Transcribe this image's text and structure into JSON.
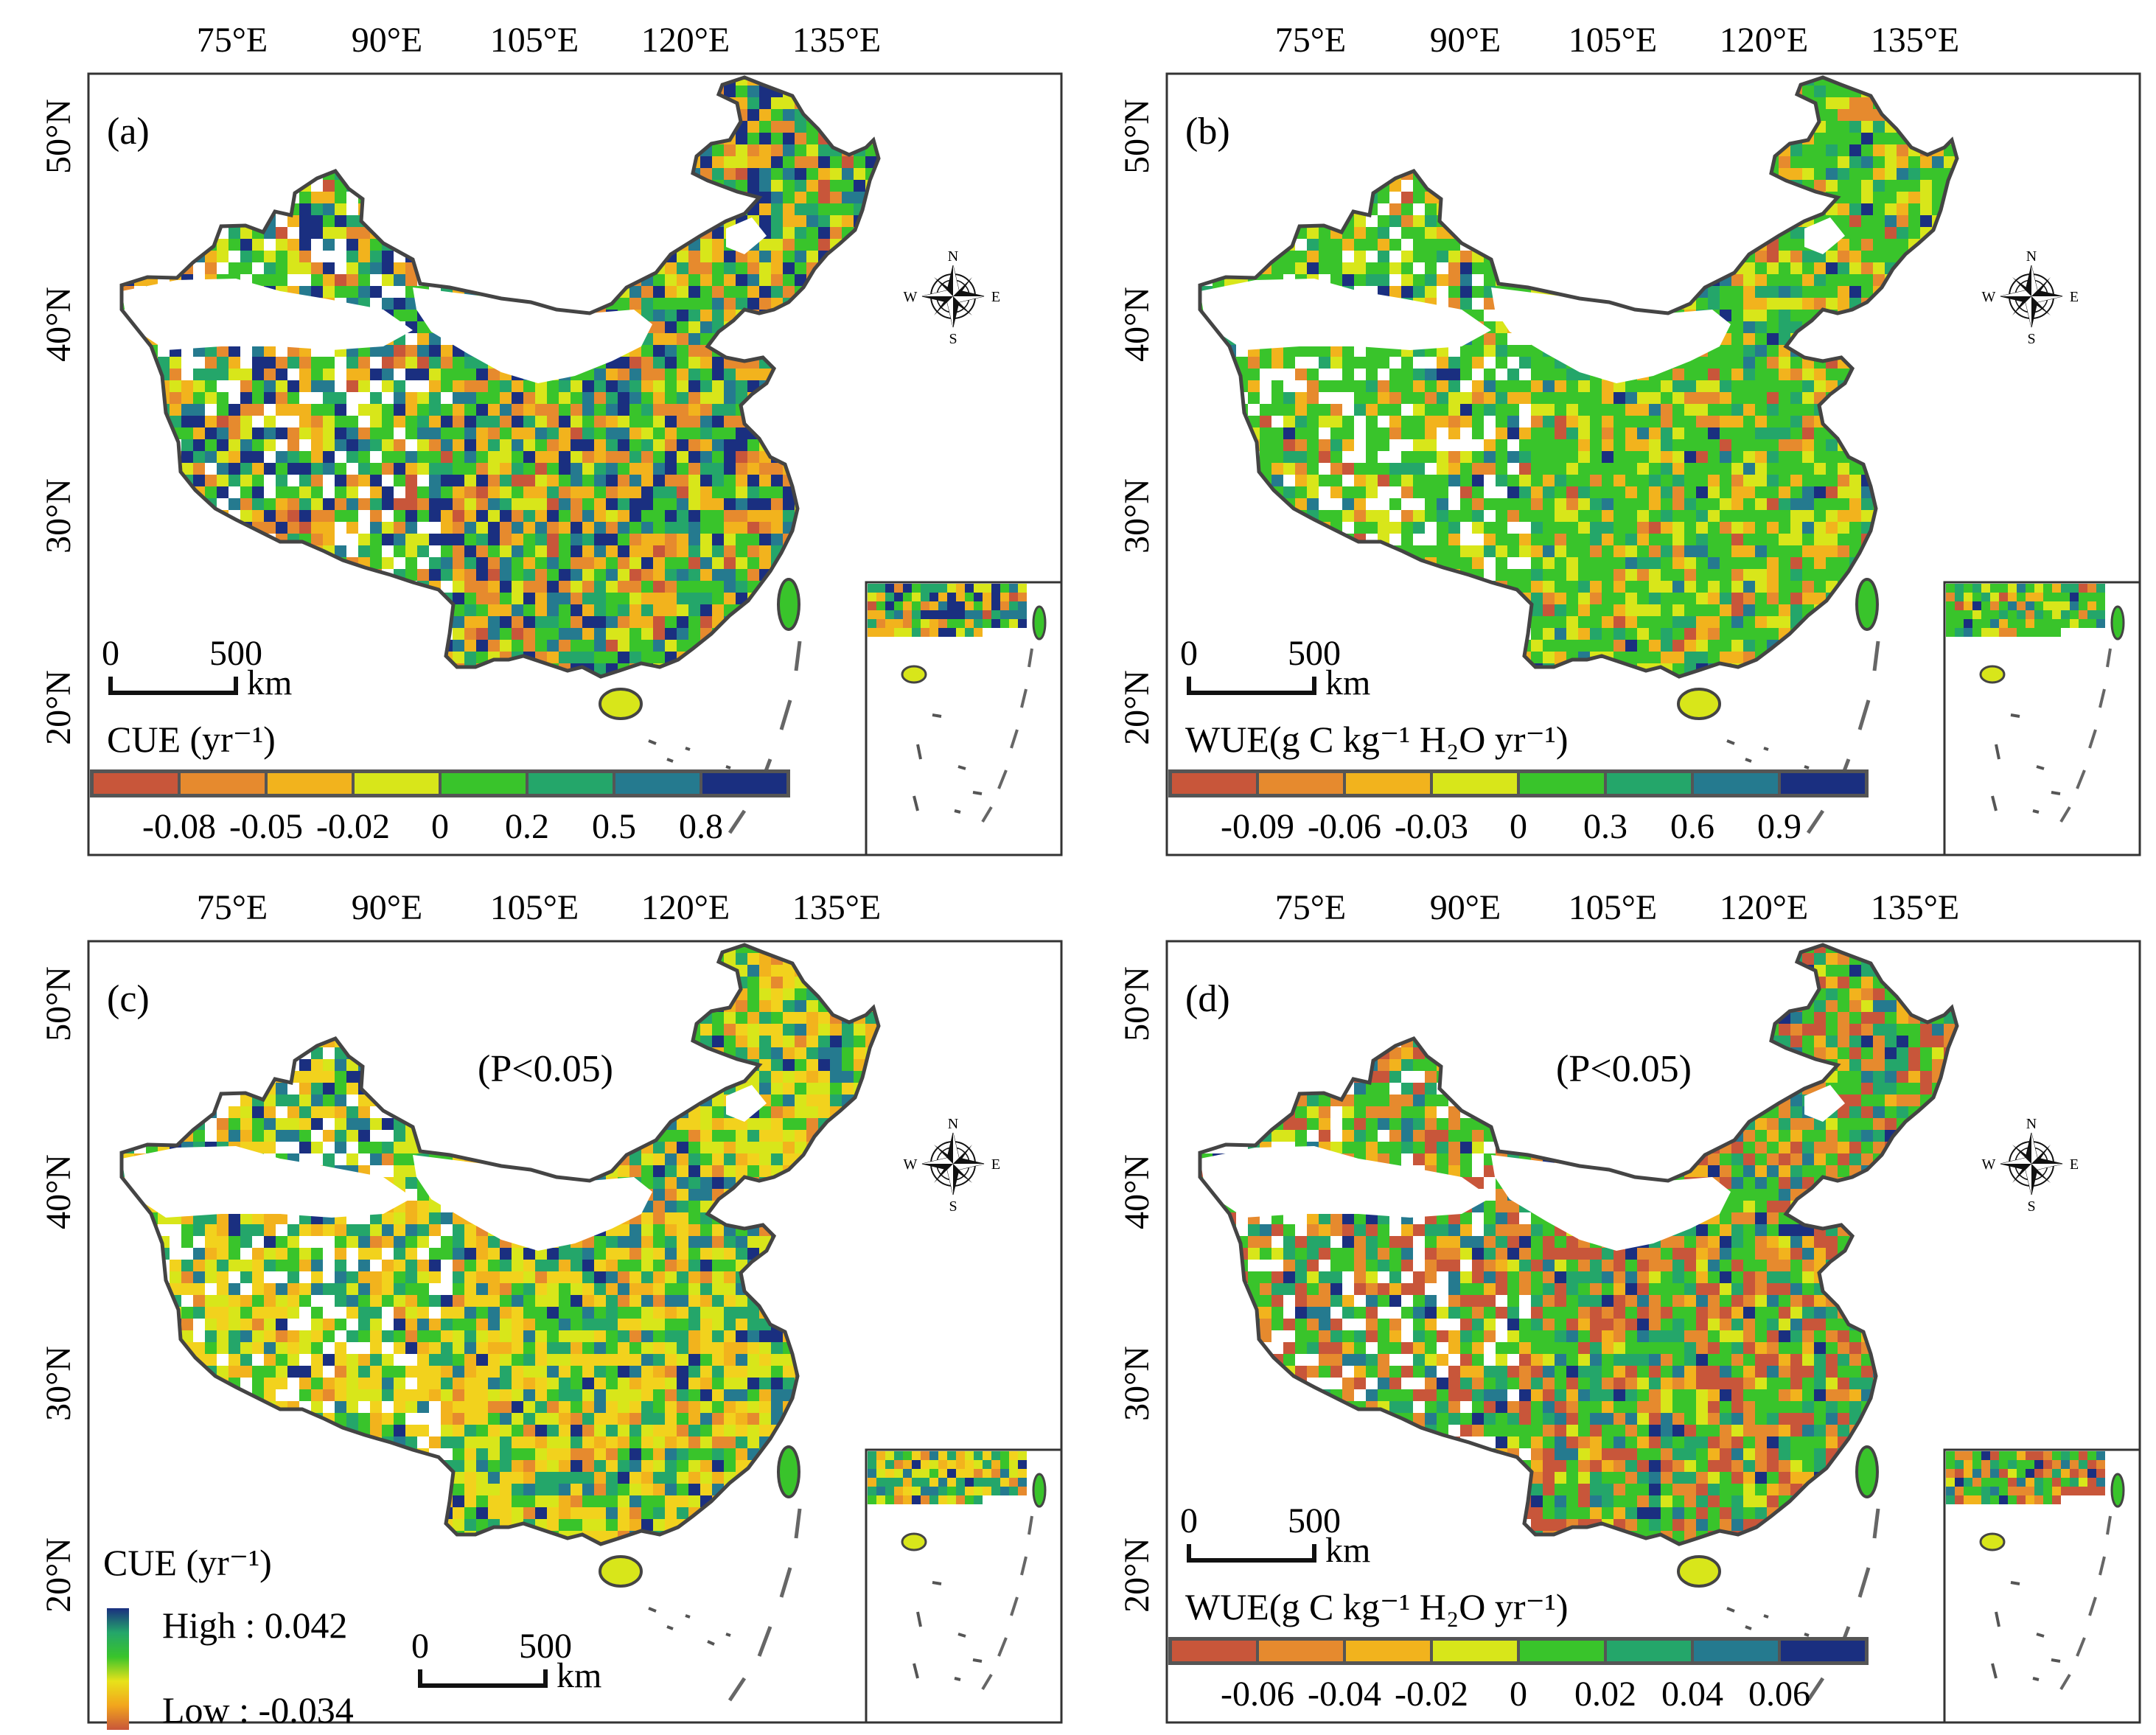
{
  "figure": {
    "panels": [
      {
        "id": "a",
        "letter": "(a)",
        "note": "",
        "legend_type": "classes",
        "legend_title": "CUE (yr⁻¹)",
        "legend_ticks": [
          "-0.08",
          "-0.05",
          "-0.02",
          "0",
          "0.2",
          "0.5",
          "0.8"
        ],
        "legend_colors": [
          "#c8563a",
          "#e68a2e",
          "#f2b31d",
          "#d8e61a",
          "#39c42b",
          "#24a66a",
          "#257a8f",
          "#1a2f80"
        ],
        "palette": [
          "#1a2f80",
          "#257a8f",
          "#24a66a",
          "#39c42b",
          "#d8e61a",
          "#f2b31d",
          "#e68a2e",
          "#c8563a"
        ],
        "weights": [
          2,
          1.5,
          1.5,
          2.5,
          1.5,
          2,
          2,
          0.6
        ]
      },
      {
        "id": "b",
        "letter": "(b)",
        "note": "",
        "legend_type": "classes",
        "legend_title": "WUE(g C kg⁻¹ H₂O yr⁻¹)",
        "legend_ticks": [
          "-0.09",
          "-0.06",
          "-0.03",
          "0",
          "0.3",
          "0.6",
          "0.9"
        ],
        "legend_colors": [
          "#c8563a",
          "#e68a2e",
          "#f2b31d",
          "#d8e61a",
          "#39c42b",
          "#24a66a",
          "#257a8f",
          "#1a2f80"
        ],
        "palette": [
          "#1a2f80",
          "#257a8f",
          "#24a66a",
          "#39c42b",
          "#d8e61a",
          "#f2b31d",
          "#e68a2e",
          "#c8563a"
        ],
        "weights": [
          0.3,
          0.5,
          1.5,
          6,
          2,
          1.5,
          0.8,
          0.3
        ]
      },
      {
        "id": "c",
        "letter": "(c)",
        "note": "(P<0.05)",
        "legend_type": "gradient",
        "legend_title": "CUE (yr⁻¹)",
        "legend_high": "High : 0.042",
        "legend_low": "Low : -0.034",
        "gradient_colors": [
          "#1a2f80",
          "#24a66a",
          "#39c42b",
          "#e8e21a",
          "#f2a51d",
          "#c8563a"
        ],
        "palette": [
          "#1a2f80",
          "#257a8f",
          "#24a66a",
          "#39c42b",
          "#d8e61a",
          "#f2d21d",
          "#f2b31d",
          "#e68a2e"
        ],
        "weights": [
          0.6,
          1.2,
          2,
          1.8,
          2,
          3,
          1.5,
          0.6
        ]
      },
      {
        "id": "d",
        "letter": "(d)",
        "note": "(P<0.05)",
        "legend_type": "classes",
        "legend_title": "WUE(g C kg⁻¹ H₂O yr⁻¹)",
        "legend_ticks": [
          "-0.06",
          "-0.04",
          "-0.02",
          "0",
          "0.02",
          "0.04",
          "0.06"
        ],
        "legend_colors": [
          "#c8563a",
          "#e68a2e",
          "#f2b31d",
          "#d8e61a",
          "#39c42b",
          "#24a66a",
          "#257a8f",
          "#1a2f80"
        ],
        "palette": [
          "#1a2f80",
          "#257a8f",
          "#24a66a",
          "#39c42b",
          "#d8e61a",
          "#f2b31d",
          "#e68a2e",
          "#c8563a"
        ],
        "weights": [
          0.5,
          1,
          2,
          3.5,
          0.6,
          1,
          2.5,
          2.5
        ]
      }
    ],
    "longitude_labels": [
      "75°E",
      "90°E",
      "105°E",
      "120°E",
      "135°E"
    ],
    "latitude_labels": [
      "50°N",
      "40°N",
      "30°N",
      "20°N"
    ],
    "scale_bar": {
      "zero": "0",
      "distance": "500",
      "unit": "km"
    },
    "compass": {
      "north": "N",
      "south": "S",
      "east": "E",
      "west": "W"
    }
  }
}
